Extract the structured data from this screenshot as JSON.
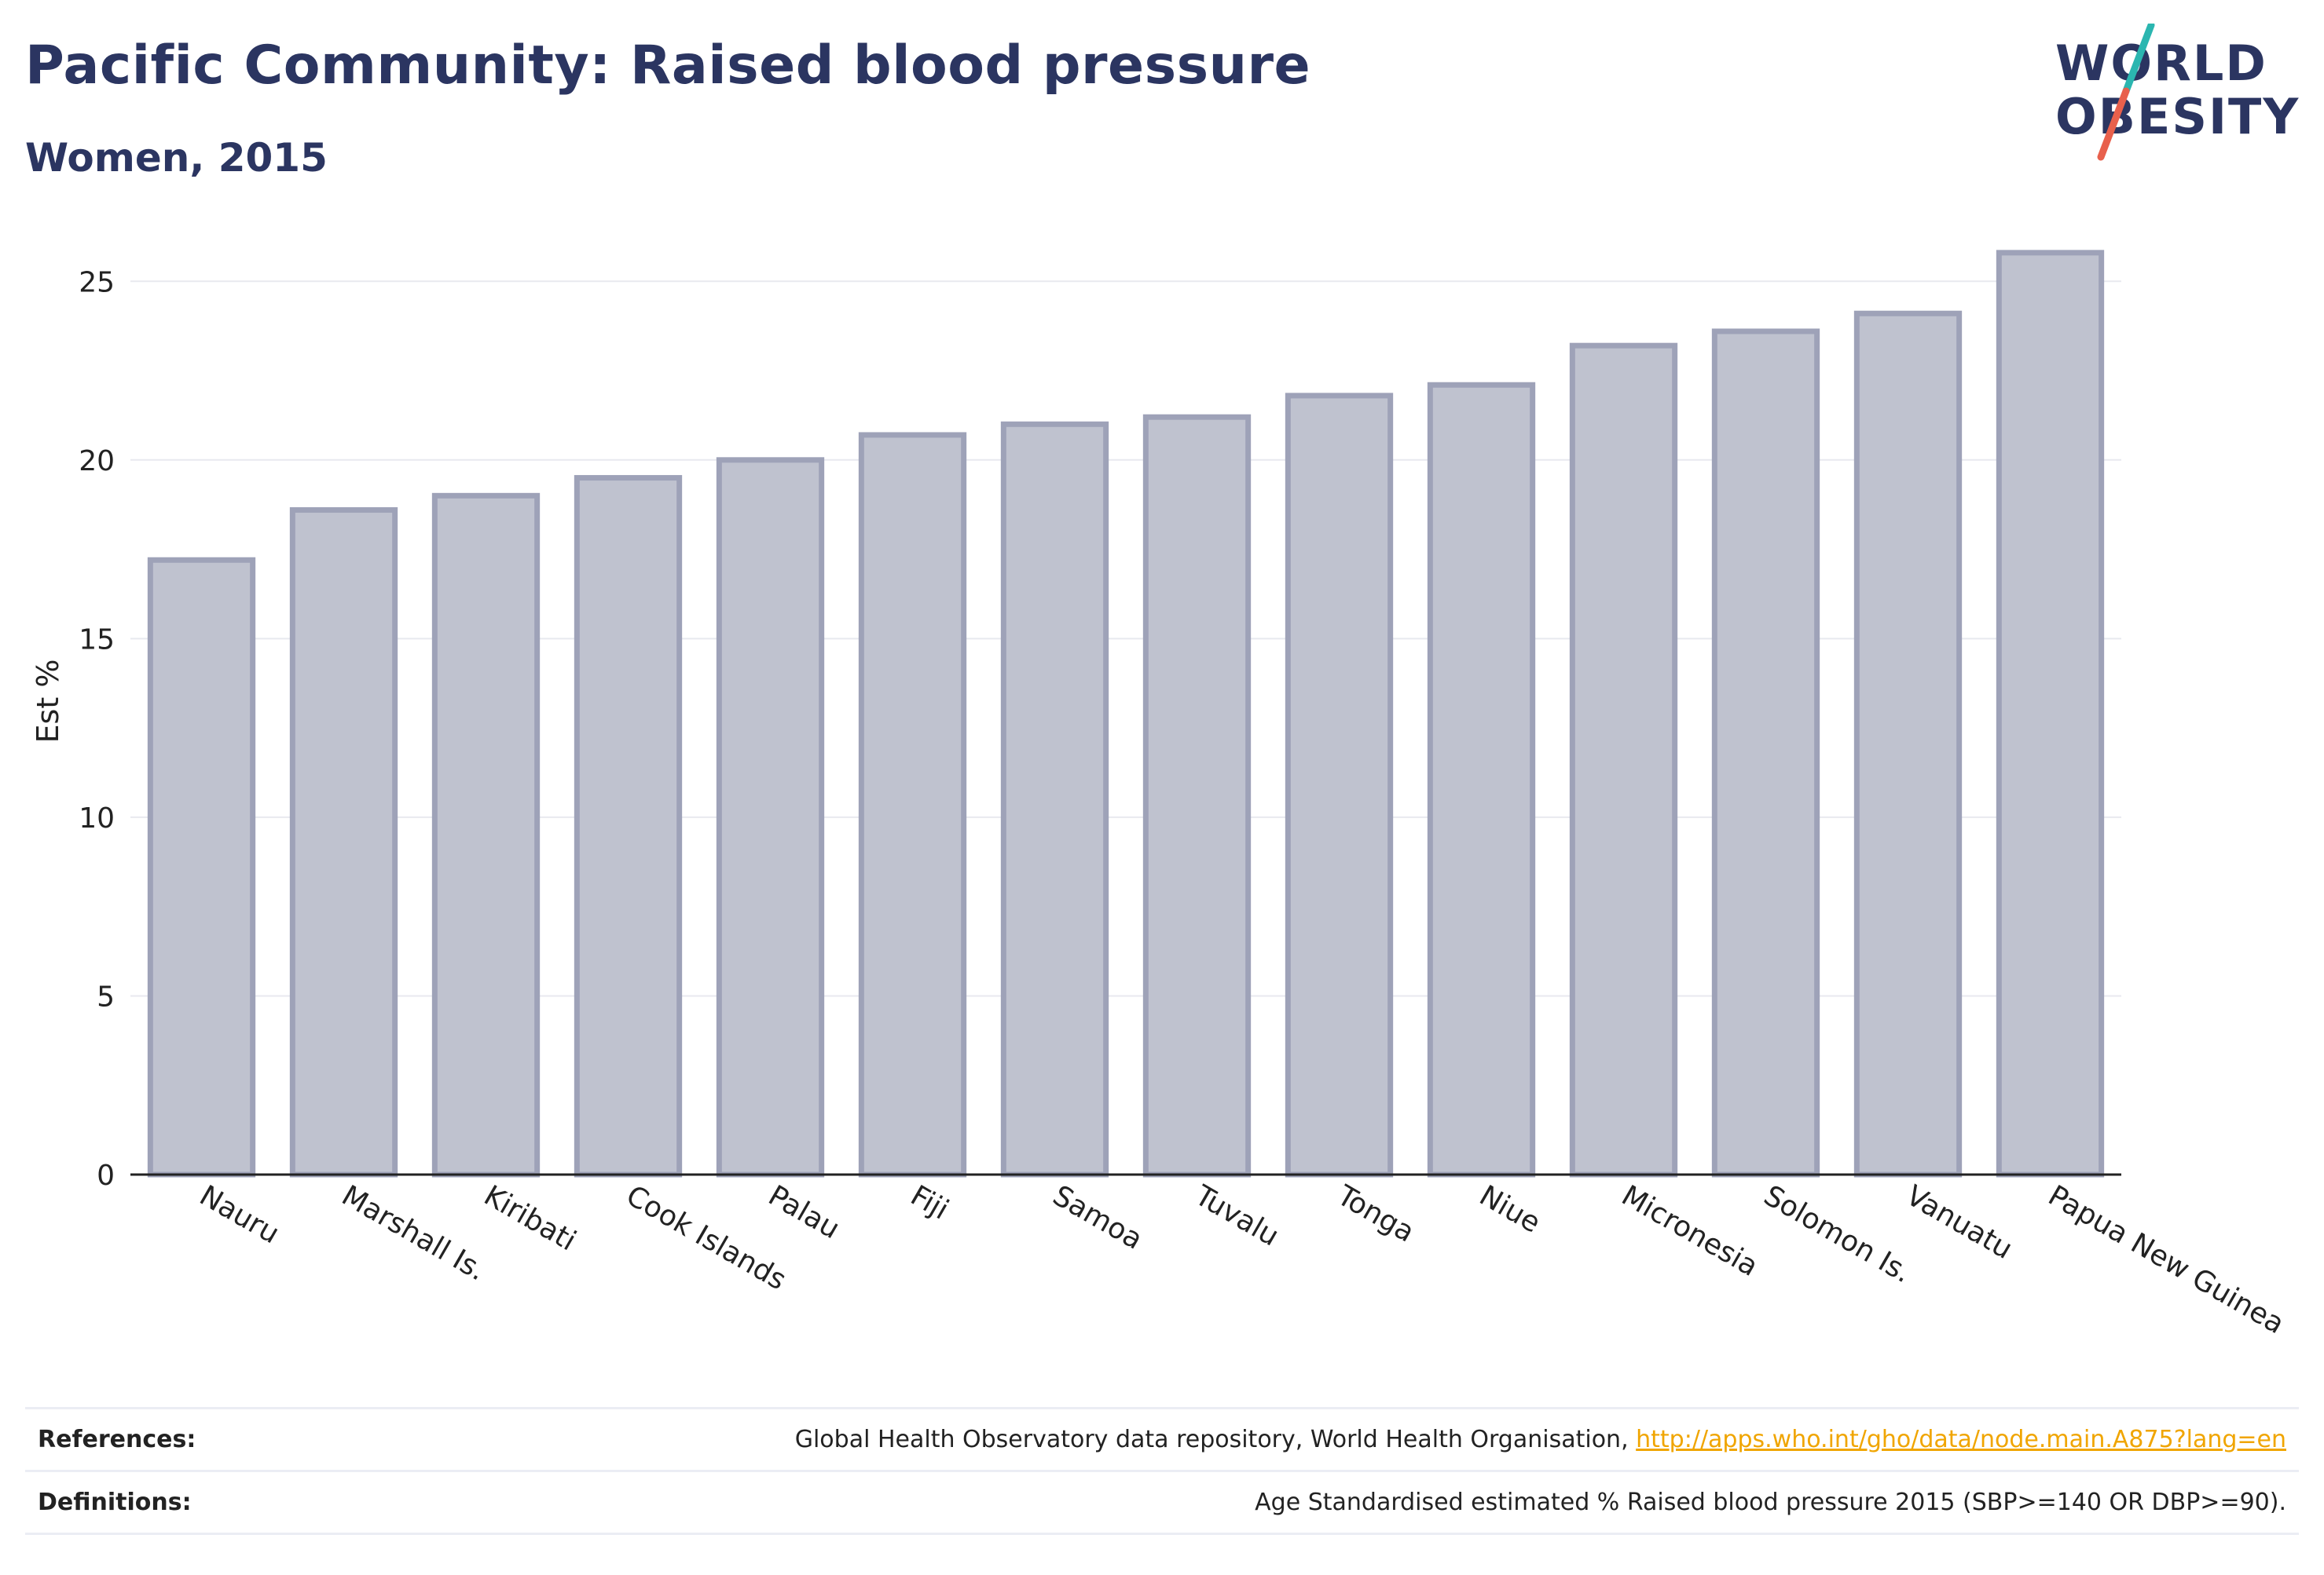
{
  "title": "Pacific Community: Raised blood pressure",
  "subtitle": "Women, 2015",
  "logo": {
    "line1": "WORLD",
    "line2": "OBESITY",
    "accent_colors": [
      "#2bb6b0",
      "#e8604c"
    ],
    "text_color": "#2b3561"
  },
  "chart_data": {
    "type": "bar",
    "categories": [
      "Nauru",
      "Marshall Is.",
      "Kiribati",
      "Cook Islands",
      "Palau",
      "Fiji",
      "Samoa",
      "Tuvalu",
      "Tonga",
      "Niue",
      "Micronesia",
      "Solomon Is.",
      "Vanuatu",
      "Papua New Guinea"
    ],
    "values": [
      17.2,
      18.6,
      19.0,
      19.5,
      20.0,
      20.7,
      21.0,
      21.2,
      21.8,
      22.1,
      23.2,
      23.6,
      24.1,
      25.8
    ],
    "ylabel": "Est %",
    "xlabel": "",
    "ylim": [
      0,
      26.5
    ],
    "yticks": [
      0,
      5,
      10,
      15,
      20,
      25
    ],
    "grid": true,
    "bar_color": "#bfc2cf",
    "bar_edge_color": "#9ea2b8"
  },
  "footer": {
    "references_label": "References:",
    "references_text": "Global Health Observatory data repository, World Health Organisation, ",
    "references_link": "http://apps.who.int/gho/data/node.main.A875?lang=en",
    "definitions_label": "Definitions:",
    "definitions_text": "Age Standardised estimated % Raised blood pressure 2015 (SBP>=140 OR DBP>=90)."
  }
}
